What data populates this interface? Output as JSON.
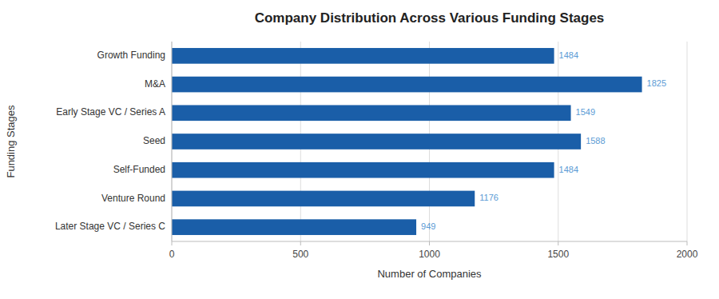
{
  "chart_data": {
    "type": "bar",
    "orientation": "horizontal",
    "title": "Company Distribution Across Various Funding Stages",
    "xlabel": "Number of Companies",
    "ylabel": "Funding Stages",
    "categories": [
      "Growth Funding",
      "M&A",
      "Early Stage VC / Series A",
      "Seed",
      "Self-Funded",
      "Venture Round",
      "Later Stage VC / Series C"
    ],
    "values": [
      1484,
      1825,
      1549,
      1588,
      1484,
      1176,
      949
    ],
    "color": "#1a5ea8",
    "xlim": [
      0,
      2000
    ],
    "xticks": [
      0,
      500,
      1000,
      1500,
      2000
    ],
    "grid": true,
    "data_labels": true
  }
}
